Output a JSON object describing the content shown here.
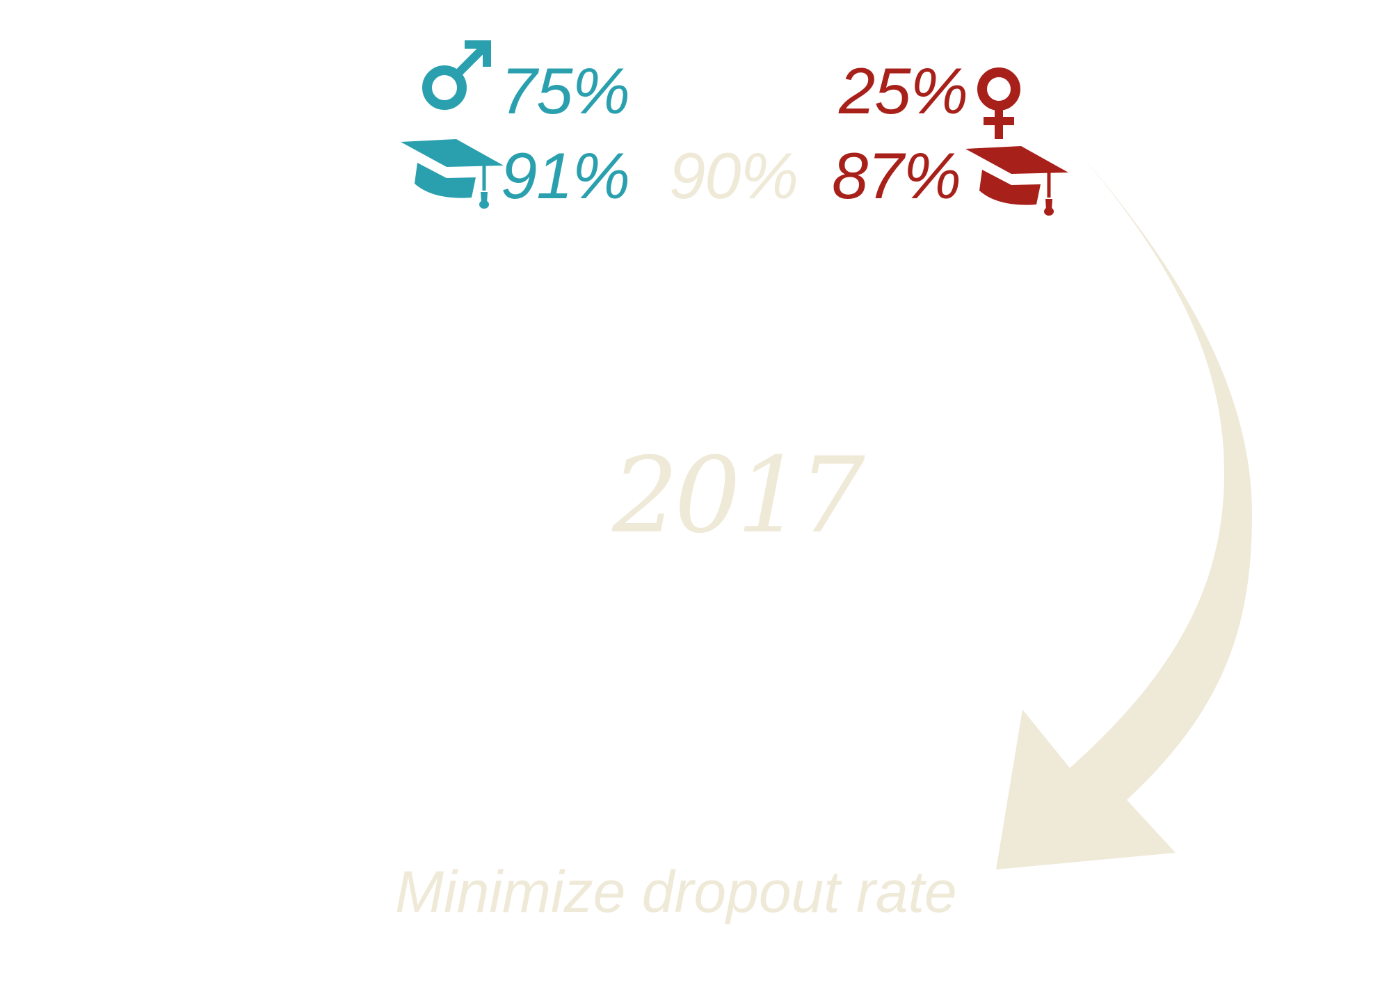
{
  "male": {
    "share": "75%",
    "graduation": "91%",
    "color": "#2aa0ae",
    "symbol_icon": "male-symbol-icon",
    "cap_icon": "graduation-cap-icon"
  },
  "overall": {
    "graduation": "90%",
    "color": "#efe9d8"
  },
  "female": {
    "share": "25%",
    "graduation": "87%",
    "color": "#a8201a",
    "symbol_icon": "female-symbol-icon",
    "cap_icon": "graduation-cap-icon"
  },
  "year": "2017",
  "goal": "Minimize dropout rate",
  "arrow_icon": "curved-arrow-icon"
}
